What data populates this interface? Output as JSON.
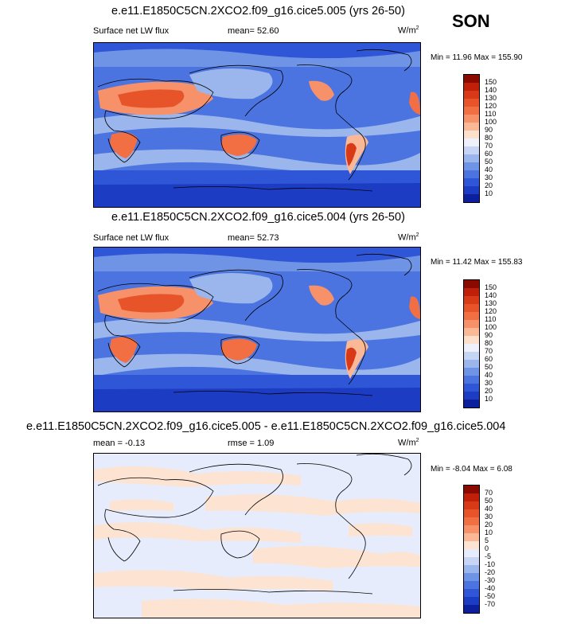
{
  "season": "SON",
  "panels": [
    {
      "id": "top",
      "title": "e.e11.E1850C5CN.2XCO2.f09_g16.cice5.005 (yrs 26-50)",
      "variable": "Surface net LW flux",
      "mean_label": "mean=",
      "mean_value": "52.60",
      "units": "W/m",
      "units_sup": "2",
      "min_label": "Min =",
      "min_value": "11.96",
      "max_label": "Max =",
      "max_value": "155.90",
      "colorbar_labels": [
        "150",
        "140",
        "130",
        "120",
        "110",
        "100",
        "90",
        "80",
        "70",
        "60",
        "50",
        "40",
        "30",
        "20",
        "10"
      ]
    },
    {
      "id": "middle",
      "title": "e.e11.E1850C5CN.2XCO2.f09_g16.cice5.004 (yrs 26-50)",
      "variable": "Surface net LW flux",
      "mean_label": "mean=",
      "mean_value": "52.73",
      "units": "W/m",
      "units_sup": "2",
      "min_label": "Min =",
      "min_value": "11.42",
      "max_label": "Max =",
      "max_value": "155.83",
      "colorbar_labels": [
        "150",
        "140",
        "130",
        "120",
        "110",
        "100",
        "90",
        "80",
        "70",
        "60",
        "50",
        "40",
        "30",
        "20",
        "10"
      ]
    },
    {
      "id": "bottom",
      "title": "e.e11.E1850C5CN.2XCO2.f09_g16.cice5.005 - e.e11.E1850C5CN.2XCO2.f09_g16.cice5.004",
      "mean_label": "mean =",
      "mean_value": "-0.13",
      "rmse_label": "rmse =",
      "rmse_value": "1.09",
      "units": "W/m",
      "units_sup": "2",
      "min_label": "Min =",
      "min_value": "-8.04",
      "max_label": "Max =",
      "max_value": "6.08",
      "colorbar_labels": [
        "70",
        "50",
        "40",
        "30",
        "20",
        "10",
        "5",
        "0",
        "-5",
        "-10",
        "-20",
        "-30",
        "-40",
        "-50",
        "-70"
      ]
    }
  ],
  "colors": {
    "abs_scale": [
      "#8b0a00",
      "#c0200a",
      "#d83a17",
      "#e8542a",
      "#f26f43",
      "#f7916a",
      "#fbb896",
      "#fde0cc",
      "#eef1fb",
      "#c6d5f3",
      "#9bb6ec",
      "#6f94e6",
      "#4b74e0",
      "#2f56d6",
      "#1d3cc4",
      "#0c1f9c"
    ],
    "diff_scale": [
      "#8b0a00",
      "#c0200a",
      "#d83a17",
      "#e8542a",
      "#f26f43",
      "#f7916a",
      "#fbb896",
      "#fde4d2",
      "#e6ecfb",
      "#c6d5f3",
      "#9bb6ec",
      "#6f94e6",
      "#4b74e0",
      "#2f56d6",
      "#1d3cc4",
      "#0c1f9c"
    ]
  }
}
